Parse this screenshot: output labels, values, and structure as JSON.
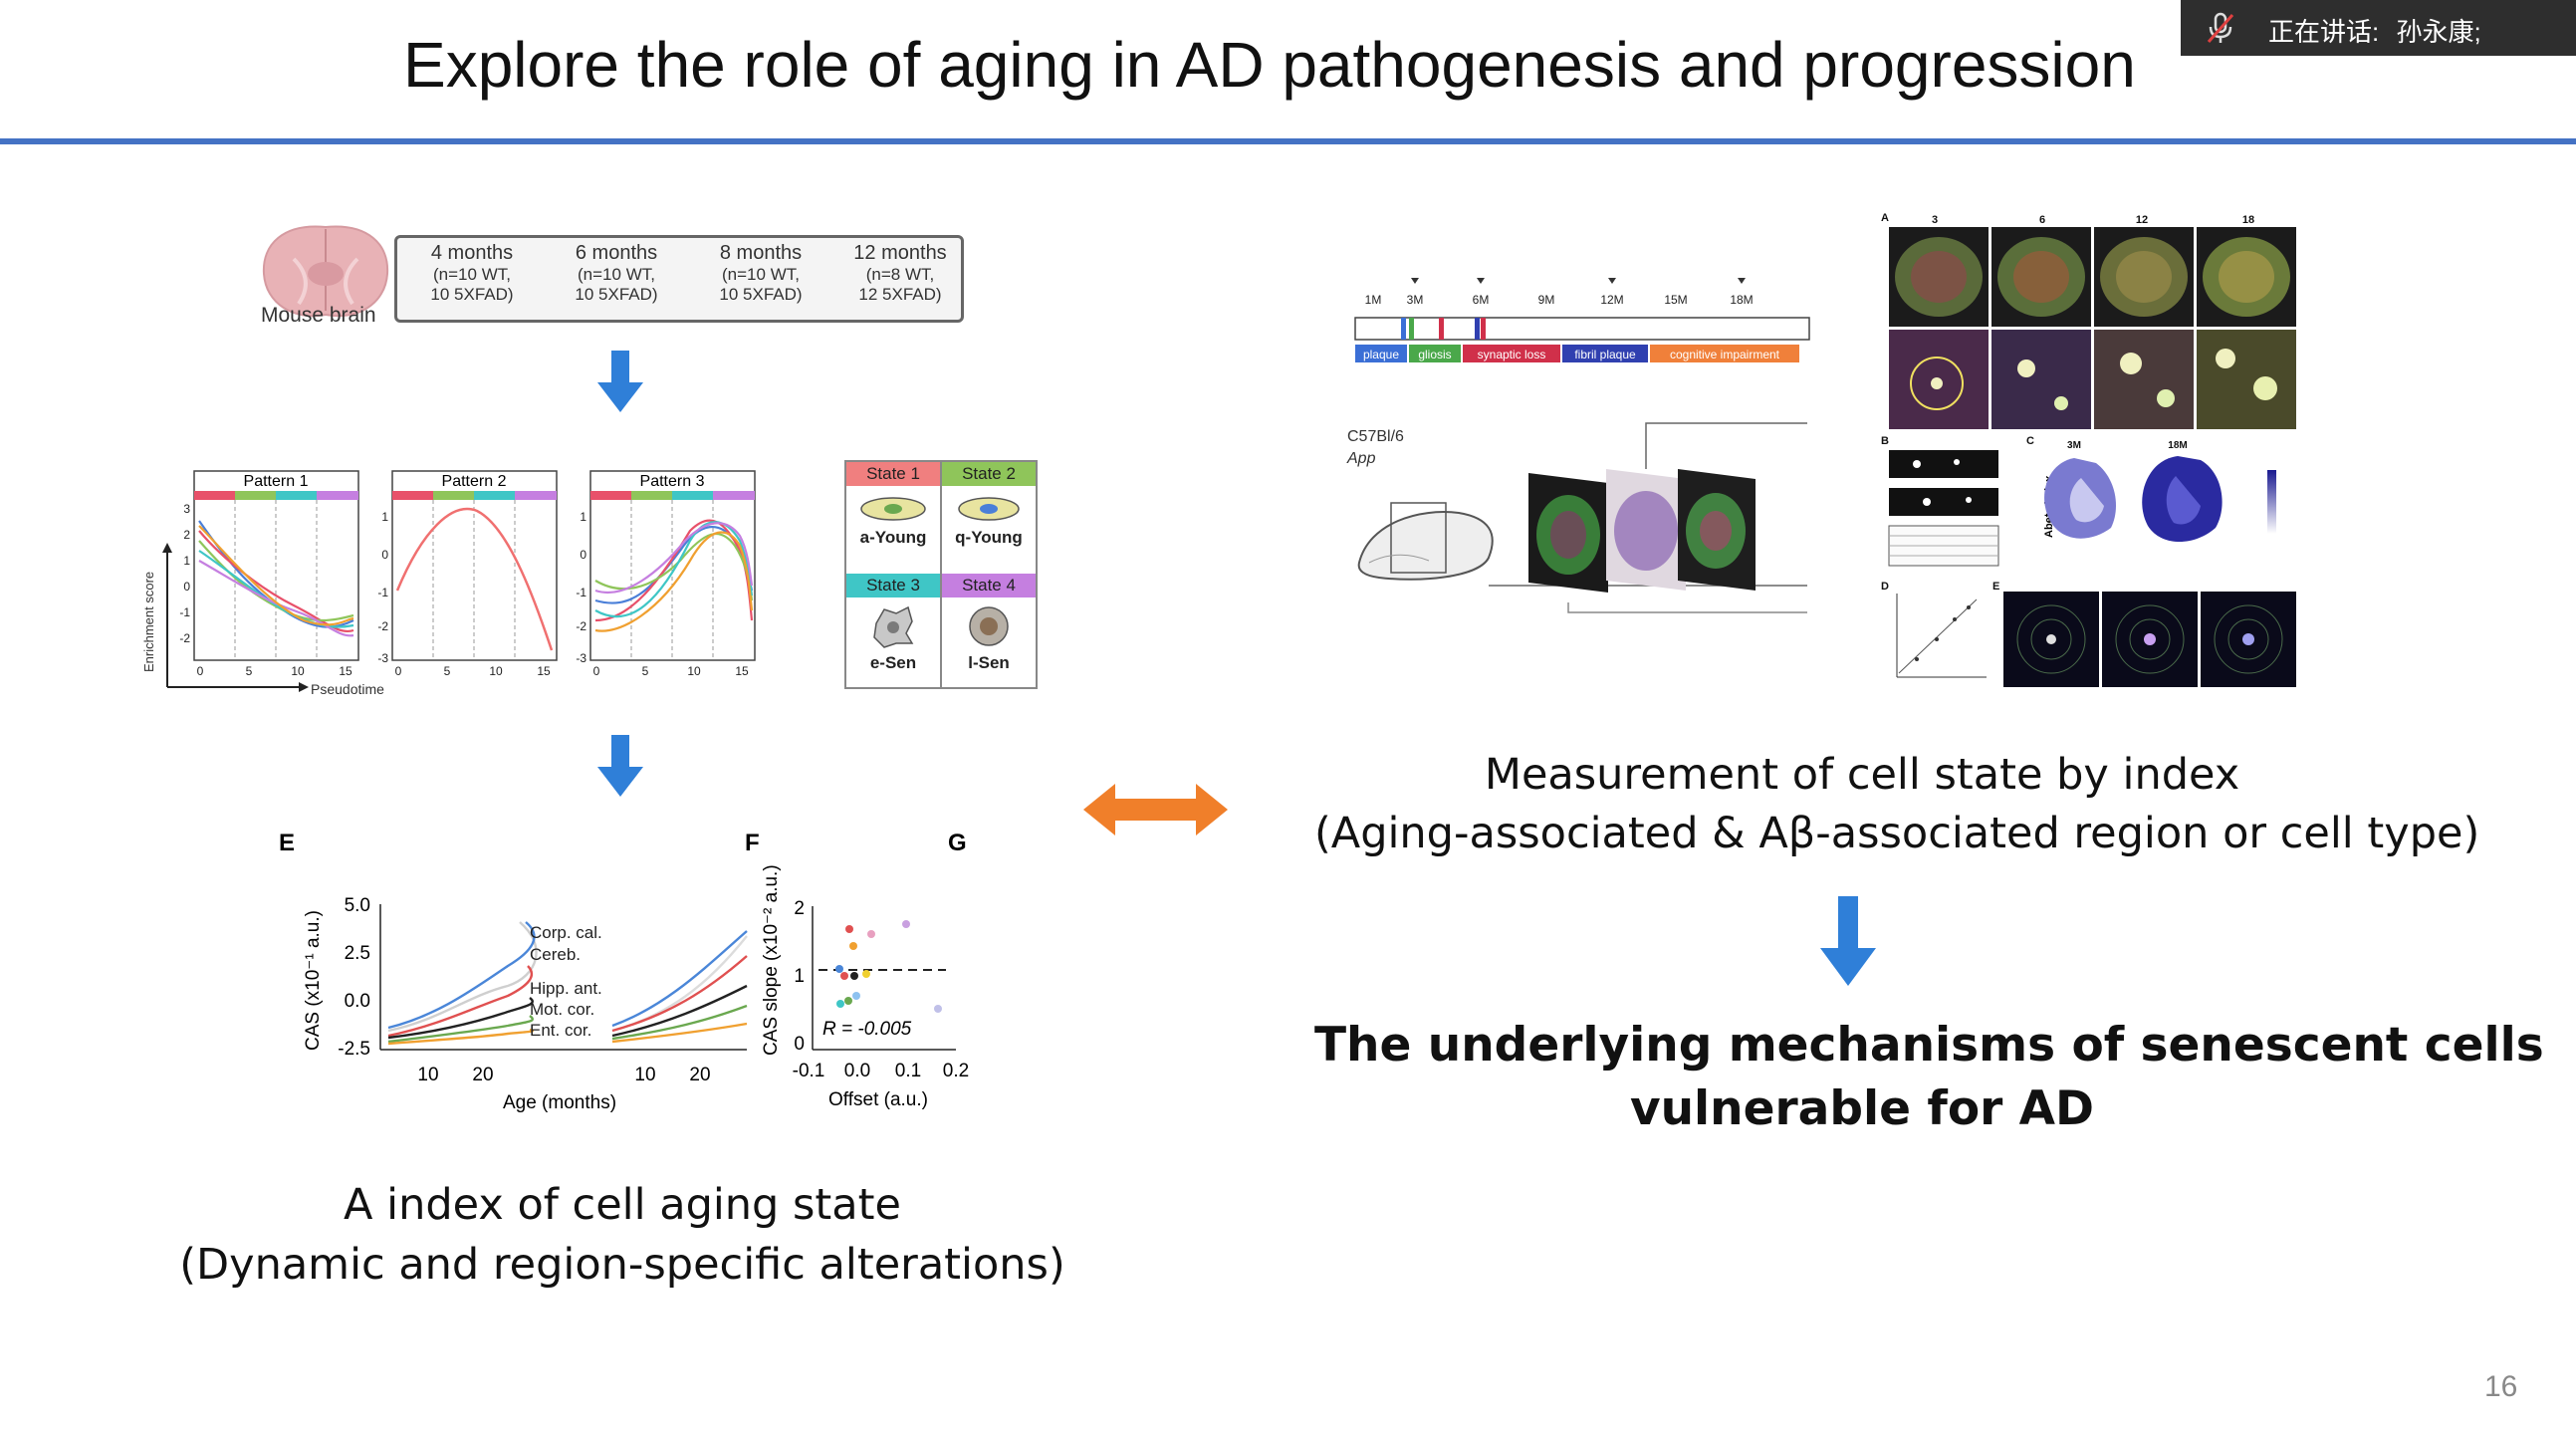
{
  "slide": {
    "title": "Explore the role of aging in AD pathogenesis and progression",
    "page_number": "16",
    "accent_color": "#4472c4"
  },
  "speaker": {
    "label": "正在讲话:",
    "name": "孙永康;",
    "icon": "muted-mic-icon"
  },
  "left_panel": {
    "mouse_brain_label": "Mouse brain",
    "cohorts": [
      {
        "age": "4 months",
        "line1": "(n=10 WT,",
        "line2": "10 5XFAD)"
      },
      {
        "age": "6 months",
        "line1": "(n=10 WT,",
        "line2": "10 5XFAD)"
      },
      {
        "age": "8 months",
        "line1": "(n=10 WT,",
        "line2": "10 5XFAD)"
      },
      {
        "age": "12 months",
        "line1": "(n=8 WT,",
        "line2": "12 5XFAD)"
      }
    ],
    "patterns": {
      "titles": [
        "Pattern 1",
        "Pattern 2",
        "Pattern 3"
      ],
      "ylabel": "Enrichment score",
      "xlabel": "Pseudotime",
      "xticks": [
        "0",
        "5",
        "10",
        "15"
      ],
      "p1_yticks": [
        "3",
        "2",
        "1",
        "0",
        "-1",
        "-2"
      ],
      "p2_yticks": [
        "1",
        "0",
        "-1",
        "-2",
        "-3"
      ],
      "p3_yticks": [
        "1",
        "0",
        "-1",
        "-2",
        "-3"
      ]
    },
    "states": [
      {
        "header": "State 1",
        "cell": "a-Young",
        "color": "#f07f7f"
      },
      {
        "header": "State 2",
        "cell": "q-Young",
        "color": "#8fc55a"
      },
      {
        "header": "State 3",
        "cell": "e-Sen",
        "color": "#3fc6c6"
      },
      {
        "header": "State 4",
        "cell": "l-Sen",
        "color": "#c57fe0"
      }
    ],
    "cas": {
      "panel_e": "E",
      "panel_f": "F",
      "panel_g": "G",
      "ylabel_e": "CAS (x10⁻¹ a.u.)",
      "yticks_e": [
        "5.0",
        "2.5",
        "0.0",
        "-2.5"
      ],
      "xticks_e1": [
        "10",
        "20"
      ],
      "xticks_e2": [
        "10",
        "20"
      ],
      "xlabel_e": "Age (months)",
      "regions": [
        "Corp. cal.",
        "Cereb.",
        "Hipp. ant.",
        "Mot. cor.",
        "Ent. cor."
      ],
      "ylabel_f": "CAS slope (x10⁻² a.u.)",
      "yticks_f": [
        "2",
        "1",
        "0"
      ],
      "xticks_f": [
        "-0.1",
        "0.0",
        "0.1",
        "0.2"
      ],
      "xlabel_f": "Offset (a.u.)",
      "r_value": "R = -0.005"
    },
    "caption_line1": "A index of cell aging state",
    "caption_line2": "(Dynamic and region-specific alterations)"
  },
  "right_panel": {
    "timeline": {
      "ticks": [
        "1M",
        "3M",
        "6M",
        "9M",
        "12M",
        "15M",
        "18M"
      ],
      "stages": [
        {
          "label": "plaque",
          "color": "#3b6fd6"
        },
        {
          "label": "gliosis",
          "color": "#4aa84a"
        },
        {
          "label": "synaptic loss",
          "color": "#d0304a"
        },
        {
          "label": "fibril plaque",
          "color": "#3040b0"
        },
        {
          "label": "cognitive impairment",
          "color": "#f0803a"
        }
      ],
      "strain1": "C57Bl/6",
      "strain2": "App"
    },
    "micro": {
      "panel_a": "A",
      "panel_b": "B",
      "panel_c": "C",
      "panel_d": "D",
      "panel_e": "E",
      "col_labels": [
        "3",
        "6",
        "12",
        "18"
      ],
      "c_labels": [
        "3M",
        "18M"
      ],
      "c_ylabel": "Abeta index"
    },
    "caption_line1": "Measurement of cell state by index",
    "caption_line2": "(Aging-associated & Aβ-associated region or cell type)",
    "conclusion_line1": "The underlying mechanisms of senescent cells",
    "conclusion_line2": "vulnerable for AD"
  }
}
